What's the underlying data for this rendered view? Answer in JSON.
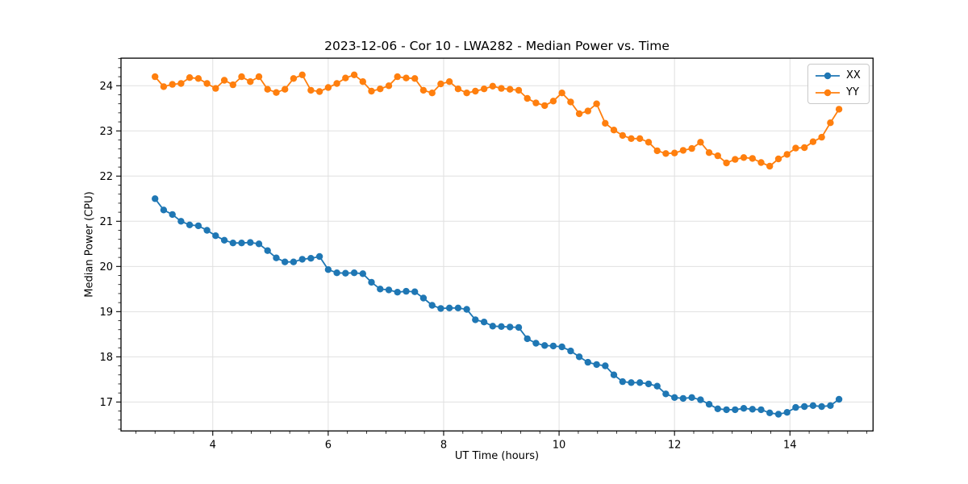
{
  "chart": {
    "title": "2023-12-06 - Cor 10 - LWA282 - Median Power vs. Time",
    "xlabel": "UT Time (hours)",
    "ylabel": "Median Power (CPU)"
  },
  "chart_data": {
    "type": "line",
    "title": "2023-12-06 - Cor 10 - LWA282 - Median Power vs. Time",
    "xlabel": "UT Time (hours)",
    "ylabel": "Median Power (CPU)",
    "xlim": [
      2.41,
      15.44
    ],
    "ylim": [
      16.36,
      24.61
    ],
    "xticks": [
      4,
      6,
      8,
      10,
      12,
      14
    ],
    "yticks": [
      17,
      18,
      19,
      20,
      21,
      22,
      23,
      24
    ],
    "x_minor_interval": 0.33333,
    "y_minor_interval": 0.2,
    "grid": "major-only",
    "grid_color": "#e0e0e0",
    "spine_color": "#000000",
    "background": "#ffffff",
    "legend": {
      "position": "upper-right",
      "entries": [
        "XX",
        "YY"
      ]
    },
    "x": [
      3.0,
      3.15,
      3.3,
      3.45,
      3.6,
      3.75,
      3.9,
      4.05,
      4.2,
      4.35,
      4.5,
      4.65,
      4.8,
      4.95,
      5.1,
      5.25,
      5.4,
      5.55,
      5.7,
      5.85,
      6.0,
      6.15,
      6.3,
      6.45,
      6.6,
      6.75,
      6.9,
      7.05,
      7.2,
      7.35,
      7.5,
      7.65,
      7.8,
      7.95,
      8.1,
      8.25,
      8.4,
      8.55,
      8.7,
      8.85,
      9.0,
      9.15,
      9.3,
      9.45,
      9.6,
      9.75,
      9.9,
      10.05,
      10.2,
      10.35,
      10.5,
      10.65,
      10.8,
      10.95,
      11.1,
      11.25,
      11.4,
      11.55,
      11.7,
      11.85,
      12.0,
      12.15,
      12.3,
      12.45,
      12.6,
      12.75,
      12.9,
      13.05,
      13.2,
      13.35,
      13.5,
      13.65,
      13.8,
      13.95,
      14.1,
      14.25,
      14.4,
      14.55,
      14.7,
      14.85
    ],
    "series": [
      {
        "name": "XX",
        "color": "#1f77b4",
        "marker": "circle",
        "values": [
          21.5,
          21.25,
          21.15,
          21.0,
          20.92,
          20.9,
          20.8,
          20.68,
          20.58,
          20.52,
          20.52,
          20.53,
          20.5,
          20.35,
          20.19,
          20.1,
          20.1,
          20.16,
          20.18,
          20.22,
          19.93,
          19.86,
          19.85,
          19.86,
          19.84,
          19.65,
          19.5,
          19.48,
          19.43,
          19.45,
          19.44,
          19.3,
          19.14,
          19.07,
          19.08,
          19.08,
          19.05,
          18.82,
          18.77,
          18.68,
          18.67,
          18.66,
          18.65,
          18.4,
          18.3,
          18.25,
          18.24,
          18.22,
          18.13,
          18.0,
          17.88,
          17.83,
          17.8,
          17.6,
          17.45,
          17.43,
          17.43,
          17.4,
          17.35,
          17.18,
          17.1,
          17.08,
          17.1,
          17.05,
          16.95,
          16.85,
          16.83,
          16.83,
          16.86,
          16.84,
          16.83,
          16.76,
          16.73,
          16.77,
          16.88,
          16.9,
          16.92,
          16.9,
          16.92,
          17.06
        ]
      },
      {
        "name": "YY",
        "color": "#ff7f0e",
        "marker": "circle",
        "values": [
          24.2,
          23.98,
          24.03,
          24.05,
          24.18,
          24.16,
          24.05,
          23.94,
          24.12,
          24.02,
          24.2,
          24.09,
          24.2,
          23.92,
          23.85,
          23.92,
          24.16,
          24.24,
          23.9,
          23.87,
          23.96,
          24.05,
          24.17,
          24.24,
          24.09,
          23.88,
          23.93,
          24.0,
          24.2,
          24.17,
          24.16,
          23.9,
          23.84,
          24.04,
          24.09,
          23.93,
          23.84,
          23.88,
          23.93,
          23.99,
          23.94,
          23.92,
          23.9,
          23.72,
          23.62,
          23.56,
          23.66,
          23.84,
          23.64,
          23.38,
          23.44,
          23.6,
          23.17,
          23.02,
          22.9,
          22.83,
          22.83,
          22.75,
          22.56,
          22.5,
          22.51,
          22.57,
          22.61,
          22.75,
          22.52,
          22.45,
          22.29,
          22.37,
          22.41,
          22.39,
          22.3,
          22.22,
          22.38,
          22.48,
          22.62,
          22.63,
          22.76,
          22.86,
          23.18,
          23.48
        ]
      }
    ]
  }
}
